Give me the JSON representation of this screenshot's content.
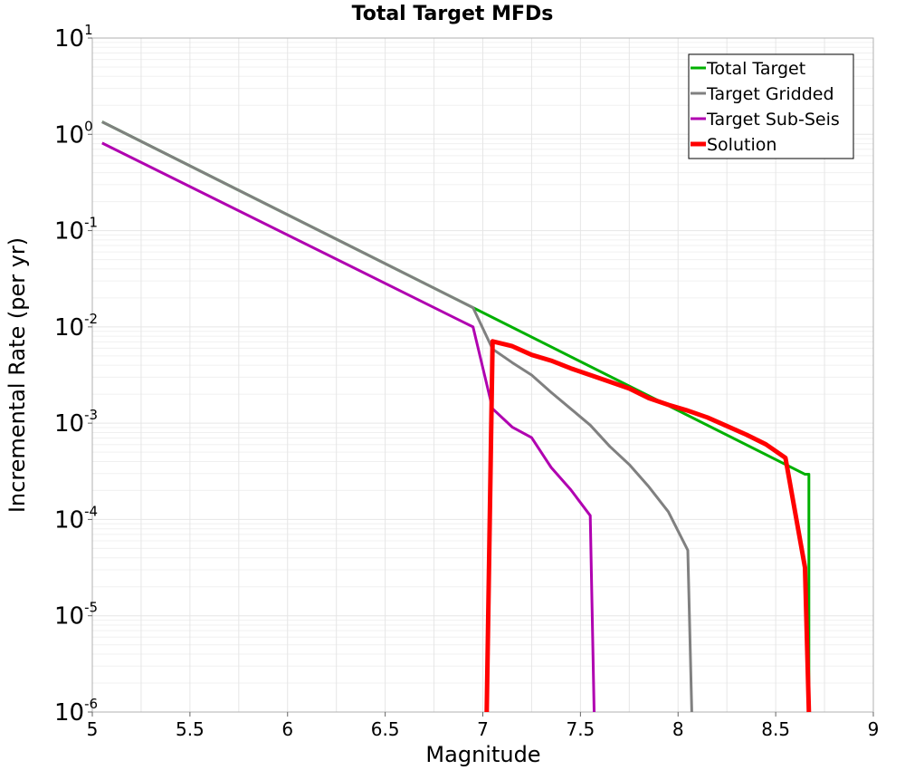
{
  "chart_data": {
    "type": "line",
    "title": "Total Target MFDs",
    "xlabel": "Magnitude",
    "ylabel": "Incremental Rate (per yr)",
    "xlim": [
      5,
      9
    ],
    "ylim_log10": [
      -6,
      1
    ],
    "yscale": "log",
    "grid": true,
    "legend_position": "top-right",
    "x_ticks": [
      "5",
      "5.5",
      "6",
      "6.5",
      "7",
      "7.5",
      "8",
      "8.5",
      "9"
    ],
    "y_ticks": [
      {
        "base": "10",
        "exp": "1"
      },
      {
        "base": "10",
        "exp": "0"
      },
      {
        "base": "10",
        "exp": "-1"
      },
      {
        "base": "10",
        "exp": "-2"
      },
      {
        "base": "10",
        "exp": "-3"
      },
      {
        "base": "10",
        "exp": "-4"
      },
      {
        "base": "10",
        "exp": "-5"
      },
      {
        "base": "10",
        "exp": "-6"
      }
    ],
    "series": [
      {
        "name": "Total Target",
        "color": "#00b000",
        "width": 3,
        "x": [
          5.05,
          6.95,
          8.65,
          8.67,
          8.67
        ],
        "log10_y": [
          0.13,
          -1.8,
          -3.53,
          -3.53,
          -6.0
        ]
      },
      {
        "name": "Target Gridded",
        "color": "#808080",
        "width": 3,
        "x": [
          5.05,
          6.95,
          7.05,
          7.15,
          7.25,
          7.35,
          7.45,
          7.55,
          7.65,
          7.75,
          7.85,
          7.95,
          8.05,
          8.07
        ],
        "log10_y": [
          0.13,
          -1.8,
          -2.23,
          -2.37,
          -2.5,
          -2.68,
          -2.85,
          -3.02,
          -3.24,
          -3.43,
          -3.66,
          -3.92,
          -4.32,
          -6.0
        ]
      },
      {
        "name": "Target Sub-Seis",
        "color": "#b000b0",
        "width": 3,
        "x": [
          5.05,
          6.95,
          7.05,
          7.15,
          7.25,
          7.35,
          7.45,
          7.55,
          7.57
        ],
        "log10_y": [
          -0.09,
          -2.0,
          -2.85,
          -3.04,
          -3.15,
          -3.46,
          -3.69,
          -3.96,
          -6.0
        ]
      },
      {
        "name": "Solution",
        "color": "#ff0000",
        "width": 5,
        "x": [
          7.02,
          7.05,
          7.15,
          7.25,
          7.35,
          7.45,
          7.55,
          7.65,
          7.75,
          7.85,
          7.95,
          8.05,
          8.15,
          8.25,
          8.35,
          8.45,
          8.55,
          8.65,
          8.67
        ],
        "log10_y": [
          -6.0,
          -2.15,
          -2.2,
          -2.29,
          -2.35,
          -2.43,
          -2.5,
          -2.57,
          -2.64,
          -2.74,
          -2.81,
          -2.87,
          -2.94,
          -3.03,
          -3.12,
          -3.22,
          -3.36,
          -4.5,
          -6.0
        ]
      }
    ]
  }
}
